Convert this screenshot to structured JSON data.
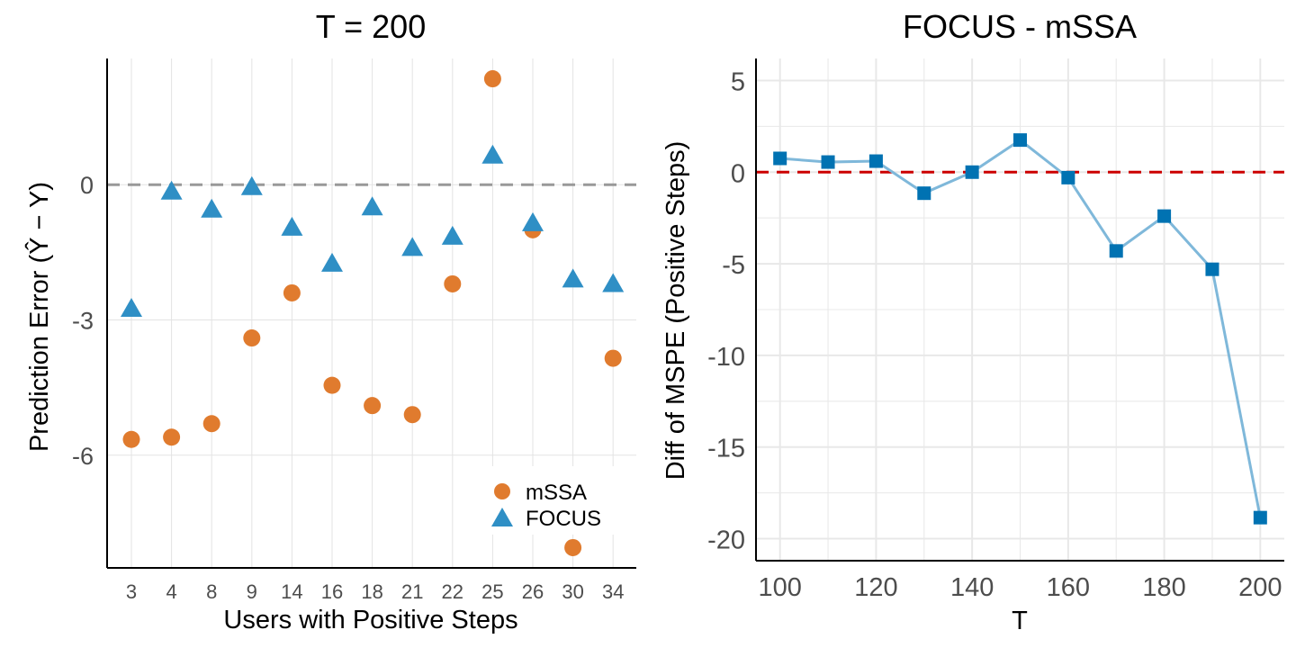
{
  "chart_data": [
    {
      "type": "scatter",
      "title": "T = 200",
      "xlabel": "Users with Positive Steps",
      "ylabel": "Prediction Error",
      "categories": [
        "3",
        "4",
        "8",
        "9",
        "14",
        "16",
        "18",
        "21",
        "22",
        "25",
        "26",
        "30",
        "34"
      ],
      "yticks": [
        -6,
        -3,
        0
      ],
      "ylim": [
        -8.5,
        2.8
      ],
      "reference_line": {
        "y": 0,
        "style": "dashed",
        "color": "#999999"
      },
      "legend": {
        "position": "bottom-right"
      },
      "grid": true,
      "series": [
        {
          "name": "mSSA",
          "marker": "circle",
          "color": "#E07B2E",
          "values": [
            -5.65,
            -5.6,
            -5.3,
            -3.4,
            -2.4,
            -4.45,
            -4.9,
            -5.1,
            -2.2,
            2.35,
            -1.0,
            -8.05,
            -3.85
          ]
        },
        {
          "name": "FOCUS",
          "marker": "triangle",
          "color": "#2F8FC5",
          "values": [
            -2.75,
            -0.15,
            -0.55,
            -0.05,
            -0.95,
            -1.75,
            -0.5,
            -1.4,
            -1.15,
            0.65,
            -0.85,
            -2.1,
            -2.2
          ]
        }
      ]
    },
    {
      "type": "line",
      "title": "FOCUS - mSSA",
      "xlabel": "T",
      "ylabel": "Diff of MSPE (Positive Steps)",
      "x": [
        100,
        110,
        120,
        130,
        140,
        150,
        160,
        170,
        180,
        190,
        200
      ],
      "xticks": [
        100,
        120,
        140,
        160,
        180,
        200
      ],
      "yticks": [
        -20,
        -15,
        -10,
        -5,
        0,
        5
      ],
      "xlim": [
        95,
        205
      ],
      "ylim": [
        -21.2,
        6.2
      ],
      "reference_line": {
        "y": 0,
        "style": "dashed",
        "color": "#CC0000"
      },
      "grid": true,
      "series": [
        {
          "marker": "square",
          "color": "#0072B2",
          "line_color": "#7FB8DA",
          "values": [
            0.75,
            0.55,
            0.6,
            -1.15,
            0.0,
            1.75,
            -0.3,
            -4.3,
            -2.4,
            -5.3,
            -18.85
          ]
        }
      ]
    }
  ]
}
